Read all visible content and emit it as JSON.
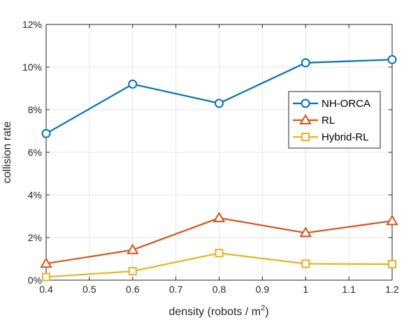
{
  "chart_data": {
    "type": "line",
    "xlabel": "density (robots / m",
    "xlabel_superscript": "2",
    "xlabel_suffix": ")",
    "ylabel": "collision rate",
    "x": [
      0.4,
      0.6,
      0.8,
      1.0,
      1.2
    ],
    "xlim": [
      0.4,
      1.2
    ],
    "ylim": [
      0,
      12
    ],
    "x_ticks": [
      0.4,
      0.5,
      0.6,
      0.7,
      0.8,
      0.9,
      1.0,
      1.1,
      1.2
    ],
    "x_tick_labels": [
      "0.4",
      "0.5",
      "0.6",
      "0.7",
      "0.8",
      "0.9",
      "1",
      "1.1",
      "1.2"
    ],
    "y_ticks": [
      0,
      2,
      4,
      6,
      8,
      10,
      12
    ],
    "y_tick_labels": [
      "0%",
      "2%",
      "4%",
      "6%",
      "8%",
      "10%",
      "12%"
    ],
    "grid": true,
    "legend_position": "right",
    "series": [
      {
        "name": "NH-ORCA",
        "color": "#0072bd",
        "marker": "circle",
        "values": [
          6.88,
          9.2,
          8.3,
          10.2,
          10.35
        ]
      },
      {
        "name": "RL",
        "color": "#d95319",
        "marker": "triangle",
        "values": [
          0.78,
          1.42,
          2.92,
          2.22,
          2.78
        ]
      },
      {
        "name": "Hybrid-RL",
        "color": "#edb120",
        "marker": "square",
        "values": [
          0.15,
          0.42,
          1.27,
          0.77,
          0.75
        ]
      }
    ]
  }
}
